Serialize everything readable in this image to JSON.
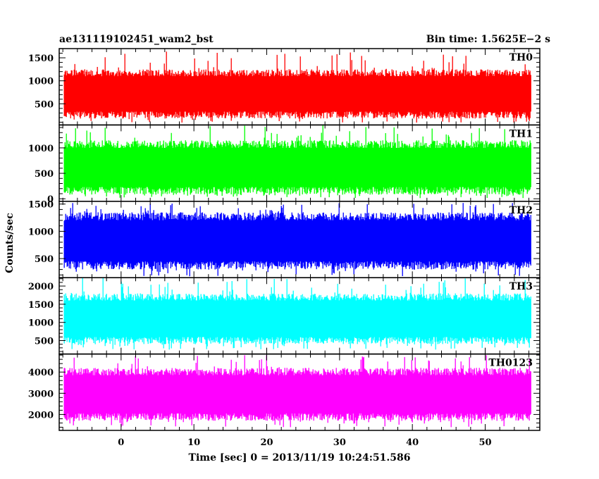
{
  "header": {
    "title": "ae131119102451_wam2_bst",
    "bin_time": "Bin time: 1.5625E−2 s"
  },
  "chart_data": {
    "type": "line",
    "xlabel": "Time [sec] 0 = 2013/11/19 10:24:51.586",
    "ylabel": "Counts/sec",
    "xlim": [
      -8.5,
      57.5
    ],
    "x_data_range": [
      -7.8,
      56.3
    ],
    "x_ticks": [
      "0",
      "10",
      "20",
      "30",
      "40",
      "50"
    ],
    "panels": [
      {
        "name": "TH0",
        "color": "#ff0000",
        "ylim": [
          40,
          1700
        ],
        "y_ticks": [
          "500",
          "1000",
          "1500"
        ],
        "typical_range": [
          180,
          1250
        ],
        "max_peak": 1650,
        "min_dip": 90
      },
      {
        "name": "TH1",
        "color": "#00ff00",
        "ylim": [
          -50,
          1450
        ],
        "y_ticks": [
          "0",
          "500",
          "1000"
        ],
        "typical_range": [
          80,
          1150
        ],
        "max_peak": 1450,
        "min_dip": 10
      },
      {
        "name": "TH2",
        "color": "#0000ff",
        "ylim": [
          150,
          1550
        ],
        "y_ticks": [
          "500",
          "1000",
          "1500"
        ],
        "typical_range": [
          300,
          1350
        ],
        "max_peak": 1520,
        "min_dip": 170
      },
      {
        "name": "TH3",
        "color": "#00ffff",
        "ylim": [
          130,
          2230
        ],
        "y_ticks": [
          "500",
          "1000",
          "1500",
          "2000"
        ],
        "typical_range": [
          400,
          1800
        ],
        "max_peak": 2230,
        "min_dip": 250
      },
      {
        "name": "TH0123",
        "color": "#ff00ff",
        "ylim": [
          1250,
          4850
        ],
        "y_ticks": [
          "2000",
          "3000",
          "4000"
        ],
        "typical_range": [
          1700,
          4200
        ],
        "max_peak": 4800,
        "min_dip": 1400
      }
    ]
  }
}
